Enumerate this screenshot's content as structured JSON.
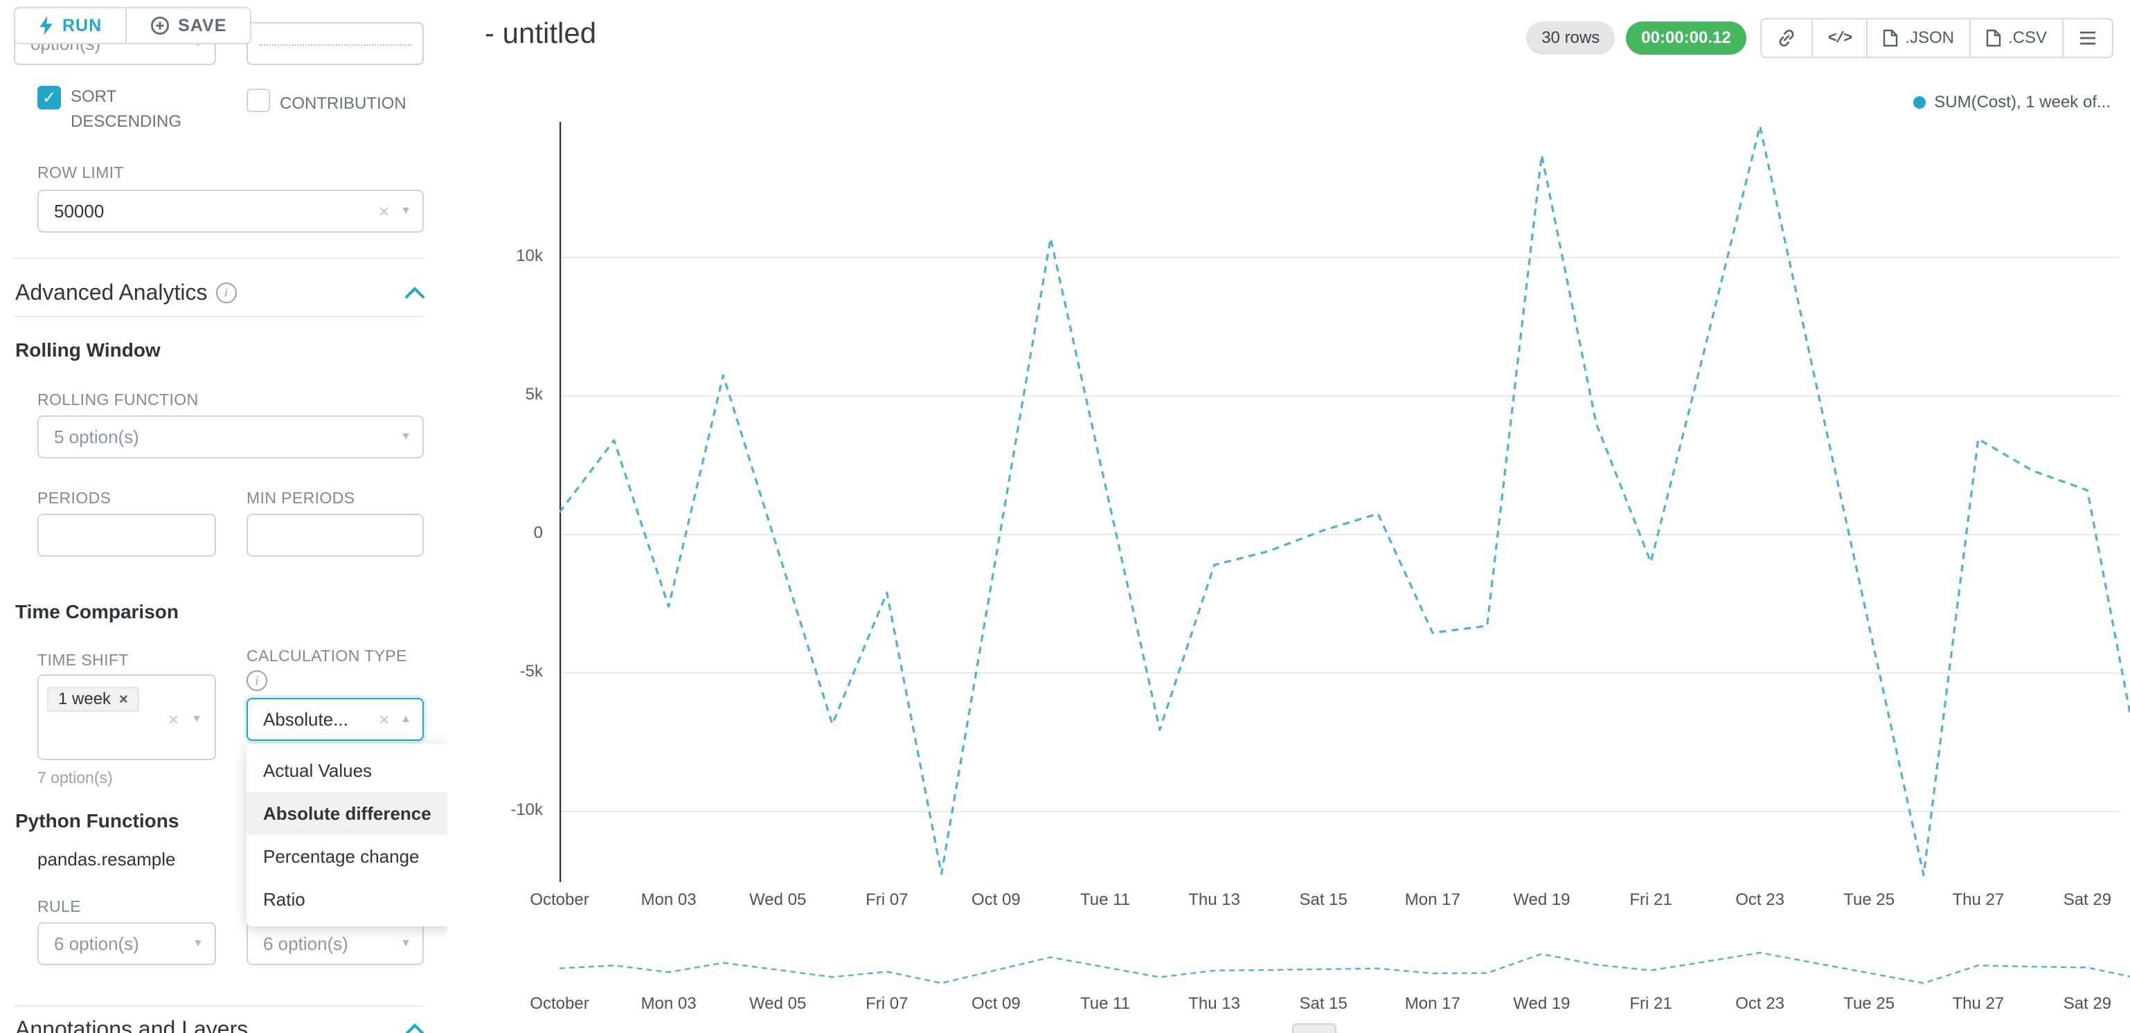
{
  "colors": {
    "accent": "#20a7c9",
    "timer_bg": "#45b75e",
    "line": "#4fb2d4",
    "legend_dot": "#20a7c9",
    "grid": "#e8e8e8",
    "axis": "#2e2e2e"
  },
  "run_save": {
    "run": "RUN",
    "save": "SAVE"
  },
  "panel": {
    "cropped_left_value": "option(s)",
    "sort_descending_label": "SORT DESCENDING",
    "sort_descending_checked": true,
    "contribution_label": "CONTRIBUTION",
    "contribution_checked": false,
    "row_limit_label": "ROW LIMIT",
    "row_limit_value": "50000",
    "advanced_analytics_title": "Advanced Analytics",
    "rolling_window_title": "Rolling Window",
    "rolling_function_label": "ROLLING FUNCTION",
    "rolling_function_placeholder": "5 option(s)",
    "periods_label": "PERIODS",
    "min_periods_label": "MIN PERIODS",
    "time_comparison_title": "Time Comparison",
    "time_shift_label": "TIME SHIFT",
    "time_shift_tag": "1 week",
    "time_shift_hint": "7 option(s)",
    "calculation_type_label": "CALCULATION TYPE",
    "calculation_type_value": "Absolute...",
    "calculation_type_options": [
      "Actual Values",
      "Absolute difference",
      "Percentage change",
      "Ratio"
    ],
    "calculation_type_selected": "Absolute difference",
    "python_functions_title": "Python Functions",
    "python_function_name": "pandas.resample",
    "rule_label": "RULE",
    "rule_placeholder": "6 option(s)",
    "method_placeholder": "6 option(s)",
    "annotations_title": "Annotations and Layers"
  },
  "header": {
    "title": "- untitled",
    "rows_badge": "30 rows",
    "timer": "00:00:00.12",
    "json_label": ".JSON",
    "csv_label": ".CSV"
  },
  "chart_data": {
    "type": "line",
    "title": "",
    "legend": [
      "SUM(Cost), 1 week of..."
    ],
    "legend_position": "top-right",
    "line_style": "dashed",
    "grid": "horizontal",
    "ylim": [
      -13500,
      15200
    ],
    "y_ticks": [
      {
        "label": "10k",
        "value": 10000
      },
      {
        "label": "5k",
        "value": 5000
      },
      {
        "label": "0",
        "value": 0
      },
      {
        "label": "-5k",
        "value": -5000
      },
      {
        "label": "-10k",
        "value": -10000
      }
    ],
    "x_ticks": [
      {
        "label": "October",
        "day": 1
      },
      {
        "label": "Mon 03",
        "day": 3
      },
      {
        "label": "Wed 05",
        "day": 5
      },
      {
        "label": "Fri 07",
        "day": 7
      },
      {
        "label": "Oct 09",
        "day": 9
      },
      {
        "label": "Tue 11",
        "day": 11
      },
      {
        "label": "Thu 13",
        "day": 13
      },
      {
        "label": "Sat 15",
        "day": 15
      },
      {
        "label": "Mon 17",
        "day": 17
      },
      {
        "label": "Wed 19",
        "day": 19
      },
      {
        "label": "Fri 21",
        "day": 21
      },
      {
        "label": "Oct 23",
        "day": 23
      },
      {
        "label": "Tue 25",
        "day": 25
      },
      {
        "label": "Thu 27",
        "day": 27
      },
      {
        "label": "Sat 29",
        "day": 29
      }
    ],
    "series": [
      {
        "name": "SUM(Cost), 1 week of...",
        "dates": [
          "Oct 01",
          "Oct 02",
          "Oct 03",
          "Oct 04",
          "Oct 05",
          "Oct 06",
          "Oct 07",
          "Oct 08",
          "Oct 09",
          "Oct 10",
          "Oct 11",
          "Oct 12",
          "Oct 13",
          "Oct 14",
          "Oct 15",
          "Oct 16",
          "Oct 17",
          "Oct 18",
          "Oct 19",
          "Oct 20",
          "Oct 21",
          "Oct 22",
          "Oct 23",
          "Oct 24",
          "Oct 25",
          "Oct 26",
          "Oct 27",
          "Oct 28",
          "Oct 29",
          "Oct 30"
        ],
        "values": [
          800,
          3400,
          -2600,
          5750,
          -550,
          -6850,
          -2100,
          -12250,
          -800,
          10700,
          1800,
          -7050,
          -1100,
          -600,
          150,
          750,
          -3550,
          -3300,
          13700,
          4000,
          -1000,
          6800,
          14750,
          5700,
          -3300,
          -12300,
          3450,
          2300,
          1600,
          -8700
        ]
      }
    ],
    "mini_preview": true
  }
}
